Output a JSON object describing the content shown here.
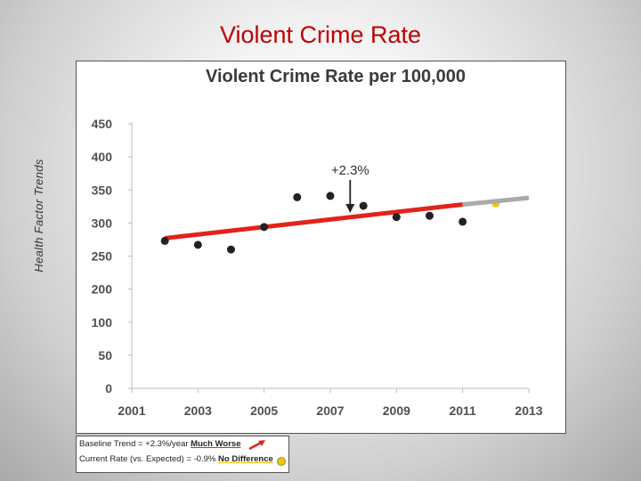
{
  "slide": {
    "title": "Violent Crime Rate",
    "side_label": "Health Factor Trends"
  },
  "chart_data": {
    "type": "scatter",
    "title": "Violent Crime Rate per 100,000",
    "xlabel": "",
    "ylabel": "",
    "y_ticks": [
      0,
      50,
      100,
      200,
      250,
      300,
      350,
      400,
      450
    ],
    "x_ticks": [
      2001,
      2003,
      2005,
      2007,
      2009,
      2011,
      2013
    ],
    "xlim": [
      2001,
      2013
    ],
    "series": [
      {
        "points": [
          {
            "x": 2002,
            "y": 273
          },
          {
            "x": 2003,
            "y": 267
          },
          {
            "x": 2004,
            "y": 260
          },
          {
            "x": 2005,
            "y": 294
          },
          {
            "x": 2006,
            "y": 339
          },
          {
            "x": 2007,
            "y": 341
          },
          {
            "x": 2008,
            "y": 326
          },
          {
            "x": 2009,
            "y": 309
          },
          {
            "x": 2010,
            "y": 311
          },
          {
            "x": 2011,
            "y": 302
          }
        ],
        "color": "#222222"
      }
    ],
    "trend_line": {
      "observed": {
        "x": [
          2002,
          2011
        ],
        "y": [
          277,
          328
        ],
        "color": "#e2231a"
      },
      "projected": {
        "x": [
          2011,
          2013
        ],
        "y": [
          328,
          338
        ],
        "color": "#aaaaaa"
      }
    },
    "expected_point": {
      "x": 2012,
      "y": 330,
      "color": "#f0c200"
    },
    "annotation": {
      "text": "+2.3%",
      "x": 2007.6,
      "y": 310
    },
    "grid": false
  },
  "legend": {
    "row1_label": "Baseline Trend = +2.3%/year",
    "row1_status": "Much Worse",
    "row2_label": "Current Rate (vs. Expected) = -0.9%",
    "row2_status": "No Difference",
    "arrow_color": "#e2231a",
    "dot_color": "#f0c200"
  }
}
